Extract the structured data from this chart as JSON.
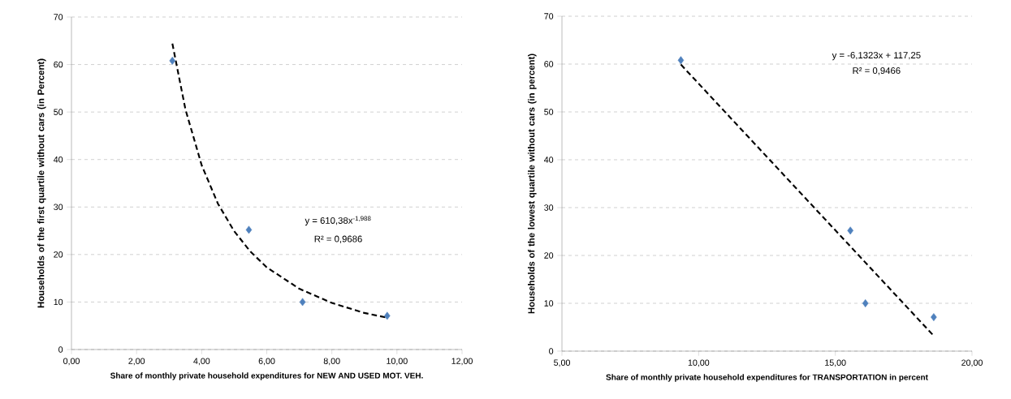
{
  "chart_data": [
    {
      "type": "scatter",
      "xlabel": "Share of monthly private household expenditures for NEW AND USED MOT. VEH.",
      "ylabel": "Households of the first quartile without cars (in Percent)",
      "xlim": [
        0,
        12
      ],
      "ylim": [
        0,
        70
      ],
      "xticks": [
        {
          "value": 0,
          "label": "0,00"
        },
        {
          "value": 2,
          "label": "2,00"
        },
        {
          "value": 4,
          "label": "4,00"
        },
        {
          "value": 6,
          "label": "6,00"
        },
        {
          "value": 8,
          "label": "8,00"
        },
        {
          "value": 10,
          "label": "10,00"
        },
        {
          "value": 12,
          "label": "12,00"
        }
      ],
      "yticks": [
        0,
        10,
        20,
        30,
        40,
        50,
        60,
        70
      ],
      "grid": "y",
      "marker": "diamond",
      "series": [
        {
          "color": "#4f81bd",
          "x": [
            3.1,
            5.45,
            7.1,
            9.7
          ],
          "values": [
            60.8,
            25.2,
            10.0,
            7.1
          ]
        },
        {
          "type": "line",
          "color": "#000000",
          "line_style": "dashed",
          "marker": "none",
          "x": [
            3.1,
            3.5,
            4,
            4.5,
            5,
            5.5,
            6,
            7,
            8,
            9,
            9.7
          ],
          "values": [
            64.4,
            50.6,
            38.8,
            30.7,
            24.9,
            20.6,
            17.3,
            12.8,
            9.8,
            7.7,
            6.7
          ]
        }
      ],
      "annotations": [
        "y = 610,38x$^{-1,988}$",
        "R² = 0,9686"
      ]
    },
    {
      "type": "scatter",
      "xlabel": "Share of monthly private household expenditures for TRANSPORTATION in percent",
      "ylabel": "Households of the lowest quartile without cars (in percent)",
      "xlim": [
        5,
        20
      ],
      "ylim": [
        0,
        70
      ],
      "xticks": [
        {
          "value": 5,
          "label": "5,00"
        },
        {
          "value": 10,
          "label": "10,00"
        },
        {
          "value": 15,
          "label": "15,00"
        },
        {
          "value": 20,
          "label": "20,00"
        }
      ],
      "yticks": [
        0,
        10,
        20,
        30,
        40,
        50,
        60,
        70
      ],
      "grid": "y",
      "marker": "diamond",
      "series": [
        {
          "color": "#4f81bd",
          "x": [
            9.35,
            15.55,
            16.1,
            18.6
          ],
          "values": [
            60.8,
            25.2,
            10.0,
            7.1
          ]
        },
        {
          "type": "line",
          "color": "#000000",
          "line_style": "dashed",
          "marker": "none",
          "x": [
            9.35,
            18.6
          ],
          "values": [
            59.9,
            3.2
          ]
        }
      ],
      "annotations": [
        "y = -6,1323x + 117,25",
        "R² = 0,9466"
      ]
    }
  ]
}
